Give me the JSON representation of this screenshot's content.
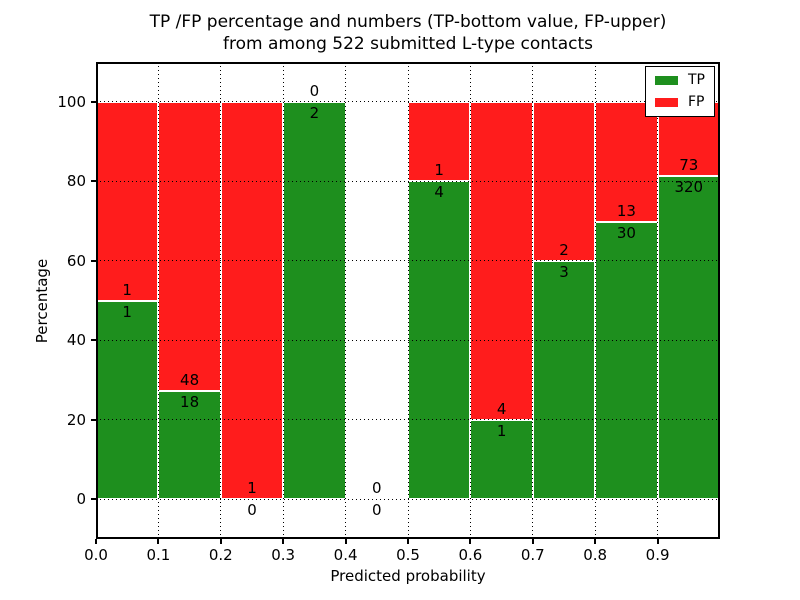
{
  "title": {
    "line1": "TP /FP percentage and numbers (TP-bottom value, FP-upper)",
    "line2": "from among 522 submitted L-type contacts"
  },
  "axes": {
    "xlabel": "Predicted probability",
    "ylabel": "Percentage",
    "x_tick_labels": [
      "0.0",
      "0.1",
      "0.2",
      "0.3",
      "0.4",
      "0.5",
      "0.6",
      "0.7",
      "0.8",
      "0.9"
    ],
    "y_tick_labels": [
      "0",
      "20",
      "40",
      "60",
      "80",
      "100"
    ],
    "xlim": [
      0.0,
      1.0
    ],
    "ylim": [
      -10,
      110
    ],
    "grid_style": "dotted-black"
  },
  "legend": {
    "position": "upper-right",
    "items": [
      {
        "label": "TP",
        "color": "#1e8f1e"
      },
      {
        "label": "FP",
        "color": "#ff1c1c"
      }
    ]
  },
  "chart_data": {
    "type": "bar",
    "stacked": true,
    "title": "TP /FP percentage and numbers (TP-bottom value, FP-upper) from among 522 submitted L-type contacts",
    "xlabel": "Predicted probability",
    "ylabel": "Percentage",
    "total_contacts": 522,
    "bin_width": 0.1,
    "bin_starts": [
      0.0,
      0.1,
      0.2,
      0.3,
      0.4,
      0.5,
      0.6,
      0.7,
      0.8,
      0.9
    ],
    "series": [
      {
        "name": "TP",
        "color": "#1e8f1e",
        "counts": [
          1,
          18,
          0,
          2,
          0,
          4,
          1,
          3,
          30,
          320
        ]
      },
      {
        "name": "FP",
        "color": "#ff1c1c",
        "counts": [
          1,
          48,
          1,
          0,
          0,
          1,
          4,
          2,
          13,
          73
        ]
      }
    ],
    "tp_percent_of_bin": [
      50.0,
      27.3,
      0.0,
      100.0,
      null,
      80.0,
      20.0,
      60.0,
      69.8,
      81.4
    ],
    "annotation_note": "FP count shown above stack boundary, TP count below"
  }
}
